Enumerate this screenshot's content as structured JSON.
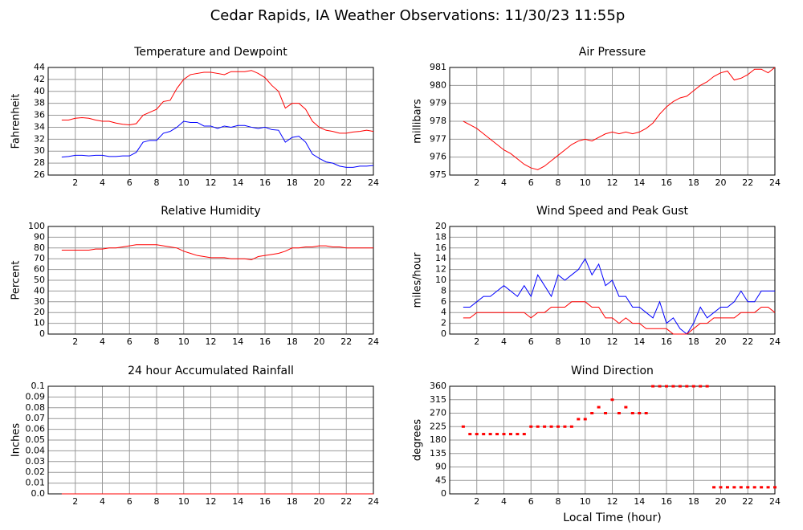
{
  "title": "Cedar Rapids, IA Weather Observations: 11/30/23 11:55p",
  "chart_data": [
    {
      "type": "line",
      "title": "Temperature and Dewpoint",
      "ylabel": "Fahrenheit",
      "x": [
        1,
        1.5,
        2,
        2.5,
        3,
        3.5,
        4,
        4.5,
        5,
        5.5,
        6,
        6.5,
        7,
        7.5,
        8,
        8.5,
        9,
        9.5,
        10,
        10.5,
        11,
        11.5,
        12,
        12.5,
        13,
        13.5,
        14,
        14.5,
        15,
        15.5,
        16,
        16.5,
        17,
        17.5,
        18,
        18.5,
        19,
        19.5,
        20,
        20.5,
        21,
        21.5,
        22,
        22.5,
        23,
        23.5,
        24
      ],
      "series": [
        {
          "color": "#ff0000",
          "values": [
            35.2,
            35.2,
            35.5,
            35.6,
            35.5,
            35.2,
            35.0,
            35.0,
            34.7,
            34.5,
            34.4,
            34.6,
            36.0,
            36.5,
            37.0,
            38.3,
            38.5,
            40.5,
            42.0,
            42.8,
            43.0,
            43.2,
            43.2,
            43.0,
            42.8,
            43.3,
            43.3,
            43.3,
            43.5,
            43.0,
            42.3,
            41.0,
            40.0,
            37.2,
            38.0,
            38.0,
            37.0,
            35.0,
            34.0,
            33.5,
            33.3,
            33.0,
            33.0,
            33.2,
            33.3,
            33.5,
            33.3
          ]
        },
        {
          "color": "#0000ff",
          "values": [
            29.0,
            29.1,
            29.3,
            29.3,
            29.2,
            29.3,
            29.3,
            29.1,
            29.1,
            29.2,
            29.2,
            29.8,
            31.5,
            31.8,
            31.8,
            33.0,
            33.3,
            34.0,
            35.0,
            34.8,
            34.8,
            34.2,
            34.2,
            33.8,
            34.2,
            34.0,
            34.3,
            34.3,
            34.0,
            33.8,
            34.0,
            33.6,
            33.5,
            31.5,
            32.3,
            32.5,
            31.5,
            29.5,
            28.8,
            28.2,
            28.0,
            27.5,
            27.3,
            27.3,
            27.5,
            27.5,
            27.6
          ]
        }
      ],
      "xlim": [
        0,
        24
      ],
      "xticks": [
        2,
        4,
        6,
        8,
        10,
        12,
        14,
        16,
        18,
        20,
        22,
        24
      ],
      "ylim": [
        26,
        44
      ],
      "yticks": [
        26,
        28,
        30,
        32,
        34,
        36,
        38,
        40,
        42,
        44
      ],
      "grid": true
    },
    {
      "type": "line",
      "title": "Air Pressure",
      "ylabel": "millibars",
      "x": [
        1,
        1.5,
        2,
        2.5,
        3,
        3.5,
        4,
        4.5,
        5,
        5.5,
        6,
        6.5,
        7,
        7.5,
        8,
        8.5,
        9,
        9.5,
        10,
        10.5,
        11,
        11.5,
        12,
        12.5,
        13,
        13.5,
        14,
        14.5,
        15,
        15.5,
        16,
        16.5,
        17,
        17.5,
        18,
        18.5,
        19,
        19.5,
        20,
        20.5,
        21,
        21.5,
        22,
        22.5,
        23,
        23.5,
        24
      ],
      "series": [
        {
          "color": "#ff0000",
          "values": [
            978.0,
            977.8,
            977.6,
            977.3,
            977.0,
            976.7,
            976.4,
            976.2,
            975.9,
            975.6,
            975.4,
            975.3,
            975.5,
            975.8,
            976.1,
            976.4,
            976.7,
            976.9,
            977.0,
            976.9,
            977.1,
            977.3,
            977.4,
            977.3,
            977.4,
            977.3,
            977.4,
            977.6,
            977.9,
            978.4,
            978.8,
            979.1,
            979.3,
            979.4,
            979.7,
            980.0,
            980.2,
            980.5,
            980.7,
            980.8,
            980.3,
            980.4,
            980.6,
            980.9,
            980.9,
            980.7,
            981.0
          ]
        }
      ],
      "xlim": [
        0,
        24
      ],
      "xticks": [
        2,
        4,
        6,
        8,
        10,
        12,
        14,
        16,
        18,
        20,
        22,
        24
      ],
      "ylim": [
        975,
        981
      ],
      "yticks": [
        975,
        976,
        977,
        978,
        979,
        980,
        981
      ],
      "grid": true
    },
    {
      "type": "line",
      "title": "Relative Humidity",
      "ylabel": "Percent",
      "x": [
        1,
        1.5,
        2,
        2.5,
        3,
        3.5,
        4,
        4.5,
        5,
        5.5,
        6,
        6.5,
        7,
        7.5,
        8,
        8.5,
        9,
        9.5,
        10,
        10.5,
        11,
        11.5,
        12,
        12.5,
        13,
        13.5,
        14,
        14.5,
        15,
        15.5,
        16,
        16.5,
        17,
        17.5,
        18,
        18.5,
        19,
        19.5,
        20,
        20.5,
        21,
        21.5,
        22,
        22.5,
        23,
        23.5,
        24
      ],
      "series": [
        {
          "color": "#ff0000",
          "values": [
            78,
            78,
            78,
            78,
            78,
            79,
            79,
            80,
            80,
            81,
            82,
            83,
            83,
            83,
            83,
            82,
            81,
            80,
            77,
            75,
            73,
            72,
            71,
            71,
            71,
            70,
            70,
            70,
            69,
            72,
            73,
            74,
            75,
            77,
            80,
            80,
            81,
            81,
            82,
            82,
            81,
            81,
            80,
            80,
            80,
            80,
            80
          ]
        }
      ],
      "xlim": [
        0,
        24
      ],
      "xticks": [
        2,
        4,
        6,
        8,
        10,
        12,
        14,
        16,
        18,
        20,
        22,
        24
      ],
      "ylim": [
        0,
        100
      ],
      "yticks": [
        0,
        10,
        20,
        30,
        40,
        50,
        60,
        70,
        80,
        90,
        100
      ],
      "grid": true
    },
    {
      "type": "line",
      "title": "Wind Speed and Peak Gust",
      "ylabel": "miles/hour",
      "x": [
        1,
        1.5,
        2,
        2.5,
        3,
        3.5,
        4,
        4.5,
        5,
        5.5,
        6,
        6.5,
        7,
        7.5,
        8,
        8.5,
        9,
        9.5,
        10,
        10.5,
        11,
        11.5,
        12,
        12.5,
        13,
        13.5,
        14,
        14.5,
        15,
        15.5,
        16,
        16.5,
        17,
        17.5,
        18,
        18.5,
        19,
        19.5,
        20,
        20.5,
        21,
        21.5,
        22,
        22.5,
        23,
        23.5,
        24
      ],
      "series": [
        {
          "color": "#0000ff",
          "values": [
            5,
            5,
            6,
            7,
            7,
            8,
            9,
            8,
            7,
            9,
            7,
            11,
            9,
            7,
            11,
            10,
            11,
            12,
            14,
            11,
            13,
            9,
            10,
            7,
            7,
            5,
            5,
            4,
            3,
            6,
            2,
            3,
            1,
            0,
            2,
            5,
            3,
            4,
            5,
            5,
            6,
            8,
            6,
            6,
            8,
            8,
            8
          ]
        },
        {
          "color": "#ff0000",
          "values": [
            3,
            3,
            4,
            4,
            4,
            4,
            4,
            4,
            4,
            4,
            3,
            4,
            4,
            5,
            5,
            5,
            6,
            6,
            6,
            5,
            5,
            3,
            3,
            2,
            3,
            2,
            2,
            1,
            1,
            1,
            1,
            0,
            0,
            0,
            1,
            2,
            2,
            3,
            3,
            3,
            3,
            4,
            4,
            4,
            5,
            5,
            4
          ]
        }
      ],
      "xlim": [
        0,
        24
      ],
      "xticks": [
        2,
        4,
        6,
        8,
        10,
        12,
        14,
        16,
        18,
        20,
        22,
        24
      ],
      "ylim": [
        0,
        20
      ],
      "yticks": [
        0,
        2,
        4,
        6,
        8,
        10,
        12,
        14,
        16,
        18,
        20
      ],
      "grid": true
    },
    {
      "type": "line",
      "title": "24 hour Accumulated Rainfall",
      "ylabel": "Inches",
      "x": [
        1,
        24
      ],
      "series": [
        {
          "color": "#ff0000",
          "values": [
            0,
            0
          ]
        }
      ],
      "xlim": [
        0,
        24
      ],
      "xticks": [
        2,
        4,
        6,
        8,
        10,
        12,
        14,
        16,
        18,
        20,
        22,
        24
      ],
      "ylim": [
        0,
        0.1
      ],
      "yticks": [
        {
          "value": 0,
          "label": "0.0"
        },
        0.01,
        0.02,
        0.03,
        0.04,
        0.05,
        0.06,
        0.07,
        0.08,
        0.09,
        0.1
      ],
      "grid": true
    },
    {
      "type": "scatter",
      "title": "Wind Direction",
      "ylabel": "degrees",
      "xlabel": "Local Time (hour)",
      "x": [
        1,
        1.5,
        2,
        2.5,
        3,
        3.5,
        4,
        4.5,
        5,
        5.5,
        6,
        6.5,
        7,
        7.5,
        8,
        8.5,
        9,
        9.5,
        10,
        10.5,
        11,
        11.5,
        12,
        12.5,
        13,
        13.5,
        14,
        14.5,
        15,
        15.5,
        16,
        16.5,
        17,
        17.5,
        18,
        18.5,
        19,
        19.5,
        20,
        20.5,
        21,
        21.5,
        22,
        22.5,
        23,
        23.5,
        24
      ],
      "series": [
        {
          "color": "#ff0000",
          "values": [
            225,
            200,
            200,
            200,
            200,
            200,
            200,
            200,
            200,
            200,
            225,
            225,
            225,
            225,
            225,
            225,
            225,
            250,
            250,
            270,
            290,
            270,
            315,
            270,
            290,
            270,
            270,
            270,
            360,
            360,
            360,
            360,
            360,
            360,
            360,
            360,
            360,
            22,
            22,
            22,
            22,
            22,
            22,
            22,
            22,
            22,
            22
          ]
        }
      ],
      "xlim": [
        0,
        24
      ],
      "xticks": [
        2,
        4,
        6,
        8,
        10,
        12,
        14,
        16,
        18,
        20,
        22,
        24
      ],
      "ylim": [
        0,
        360
      ],
      "yticks": [
        0,
        45,
        90,
        135,
        180,
        225,
        270,
        315,
        360
      ],
      "grid": true
    }
  ]
}
